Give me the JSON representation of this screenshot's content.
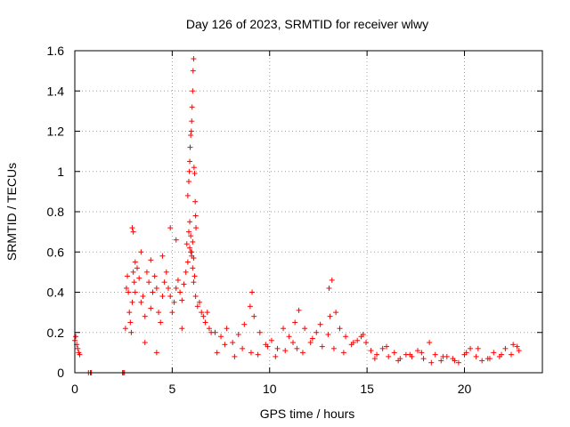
{
  "chart_data": {
    "type": "scatter",
    "title": "Day 126 of 2023, SRMTID for receiver wlwy",
    "xlabel": "GPS time / hours",
    "ylabel": "SRMTID / TECUs",
    "xlim": [
      0,
      24
    ],
    "ylim": [
      0,
      1.6
    ],
    "xticks": [
      0,
      5,
      10,
      15,
      20
    ],
    "xtick_labels": [
      "0",
      "5",
      "10",
      "15",
      "20"
    ],
    "yticks": [
      0,
      0.2,
      0.4,
      0.6,
      0.8,
      1,
      1.2,
      1.4,
      1.6
    ],
    "ytick_labels": [
      "0",
      "0.2",
      "0.4",
      "0.6",
      "0.8",
      "1",
      "1.2",
      "1.4",
      "1.6"
    ],
    "grid": true,
    "marker": "+",
    "color": "#ff0000",
    "series": [
      {
        "name": "SRMTID",
        "x": [
          0.0,
          0.05,
          0.1,
          0.15,
          0.2,
          0.25,
          0.7,
          0.8,
          0.85,
          2.45,
          2.5,
          2.55,
          2.6,
          2.65,
          2.7,
          2.75,
          2.8,
          2.85,
          2.9,
          2.95,
          3.0,
          3.05,
          3.1,
          3.2,
          3.3,
          3.4,
          3.5,
          3.6,
          3.7,
          3.8,
          3.9,
          4.0,
          4.1,
          4.2,
          4.3,
          4.4,
          4.5,
          4.6,
          4.7,
          4.8,
          4.9,
          5.0,
          5.1,
          5.2,
          5.3,
          5.4,
          5.5,
          5.6,
          5.7,
          5.8,
          5.9,
          5.95,
          6.0,
          6.05,
          6.1,
          6.2,
          6.3,
          6.4,
          6.5,
          6.6,
          6.7,
          6.8,
          6.9,
          7.0,
          2.95,
          3.0,
          3.1,
          3.4,
          3.6,
          3.9,
          4.2,
          4.5,
          4.9,
          5.2,
          5.5,
          5.75,
          5.85,
          5.9,
          5.95,
          6.0,
          6.05,
          6.1,
          6.15,
          5.8,
          5.85,
          5.88,
          5.9,
          5.92,
          5.95,
          5.98,
          6.0,
          6.02,
          6.05,
          6.07,
          6.1,
          6.12,
          6.15,
          6.18,
          6.2,
          6.22,
          7.2,
          7.5,
          7.8,
          8.1,
          8.4,
          8.7,
          9.0,
          9.1,
          9.2,
          9.5,
          9.8,
          10.1,
          10.4,
          10.7,
          11.0,
          11.3,
          11.5,
          11.8,
          12.1,
          12.4,
          12.7,
          13.0,
          13.1,
          13.2,
          13.4,
          13.6,
          13.9,
          14.2,
          14.5,
          14.8,
          14.95,
          7.3,
          7.7,
          8.2,
          8.6,
          9.05,
          9.4,
          9.9,
          10.3,
          10.8,
          11.2,
          11.4,
          11.7,
          12.2,
          12.6,
          13.05,
          13.3,
          13.8,
          14.3,
          14.7,
          15.2,
          15.5,
          15.8,
          16.1,
          16.4,
          16.7,
          17.0,
          17.3,
          17.6,
          17.9,
          18.2,
          18.5,
          18.8,
          19.1,
          19.4,
          19.7,
          20.0,
          20.3,
          20.6,
          20.9,
          21.2,
          21.5,
          21.8,
          22.1,
          22.4,
          22.7,
          22.8,
          15.4,
          16.0,
          16.6,
          17.2,
          17.8,
          18.3,
          18.9,
          19.5,
          20.1,
          20.7,
          21.3,
          21.9,
          22.5
        ],
        "y": [
          0.16,
          0.18,
          0.14,
          0.12,
          0.1,
          0.09,
          0.0,
          0.0,
          0.0,
          0.0,
          0.0,
          0.0,
          0.22,
          0.42,
          0.48,
          0.4,
          0.3,
          0.25,
          0.2,
          0.35,
          0.5,
          0.45,
          0.4,
          0.52,
          0.47,
          0.35,
          0.38,
          0.28,
          0.5,
          0.45,
          0.32,
          0.4,
          0.48,
          0.42,
          0.3,
          0.25,
          0.38,
          0.45,
          0.5,
          0.42,
          0.38,
          0.3,
          0.35,
          0.42,
          0.46,
          0.4,
          0.36,
          0.44,
          0.5,
          0.55,
          0.62,
          0.6,
          0.58,
          0.52,
          0.45,
          0.38,
          0.33,
          0.35,
          0.3,
          0.28,
          0.25,
          0.3,
          0.22,
          0.2,
          0.72,
          0.7,
          0.55,
          0.6,
          0.15,
          0.56,
          0.1,
          0.58,
          0.72,
          0.66,
          0.22,
          0.64,
          0.7,
          0.75,
          0.68,
          0.6,
          0.65,
          0.57,
          0.48,
          0.88,
          0.95,
          1.0,
          1.05,
          1.12,
          1.18,
          1.2,
          1.25,
          1.32,
          1.4,
          1.5,
          1.56,
          1.02,
          0.99,
          0.85,
          0.78,
          0.72,
          0.2,
          0.18,
          0.22,
          0.15,
          0.19,
          0.24,
          0.33,
          0.4,
          0.28,
          0.2,
          0.14,
          0.16,
          0.12,
          0.22,
          0.18,
          0.25,
          0.31,
          0.22,
          0.15,
          0.2,
          0.13,
          0.19,
          0.28,
          0.46,
          0.3,
          0.22,
          0.18,
          0.14,
          0.16,
          0.19,
          0.15,
          0.1,
          0.14,
          0.08,
          0.12,
          0.1,
          0.09,
          0.13,
          0.08,
          0.11,
          0.15,
          0.12,
          0.1,
          0.17,
          0.24,
          0.42,
          0.12,
          0.1,
          0.15,
          0.18,
          0.11,
          0.09,
          0.12,
          0.08,
          0.1,
          0.07,
          0.09,
          0.08,
          0.11,
          0.07,
          0.15,
          0.09,
          0.06,
          0.08,
          0.07,
          0.05,
          0.09,
          0.12,
          0.08,
          0.06,
          0.07,
          0.1,
          0.08,
          0.12,
          0.09,
          0.13,
          0.11,
          0.07,
          0.13,
          0.06,
          0.09,
          0.1,
          0.05,
          0.08,
          0.06,
          0.1,
          0.12,
          0.07,
          0.09,
          0.14
        ]
      }
    ]
  }
}
